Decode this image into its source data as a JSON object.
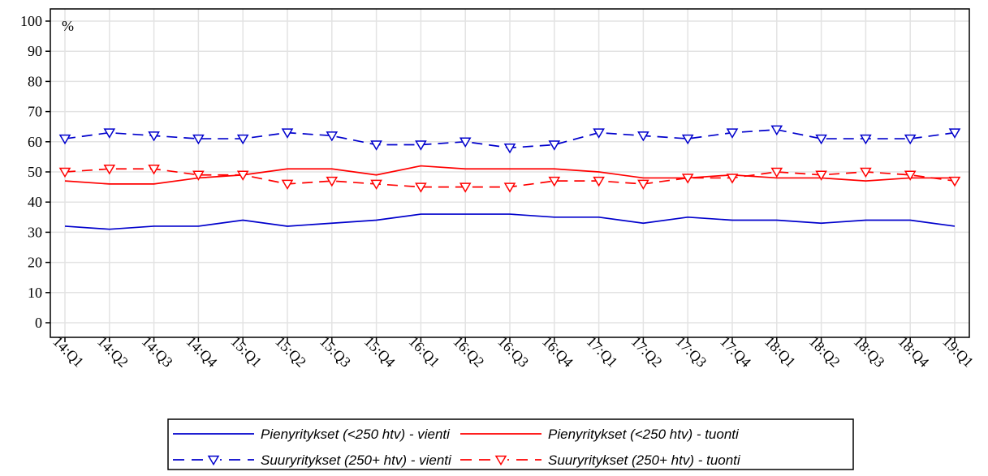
{
  "chart_data": {
    "type": "line",
    "title": "",
    "ylabel": "%",
    "xlabel": "",
    "ylim": [
      0,
      100
    ],
    "yticks": [
      0,
      10,
      20,
      30,
      40,
      50,
      60,
      70,
      80,
      90,
      100
    ],
    "grid": true,
    "legend_position": "bottom",
    "categories": [
      "14:Q1",
      "14:Q2",
      "14:Q3",
      "14:Q4",
      "15:Q1",
      "15:Q2",
      "15:Q3",
      "15:Q4",
      "16:Q1",
      "16:Q2",
      "16:Q3",
      "16:Q4",
      "17:Q1",
      "17:Q2",
      "17:Q3",
      "17:Q4",
      "18:Q1",
      "18:Q2",
      "18:Q3",
      "18:Q4",
      "19:Q1"
    ],
    "series": [
      {
        "name": "Pienyritykset (<250 htv) - vienti",
        "color": "#0000cc",
        "dash": "solid",
        "marker": "none",
        "values": [
          32,
          31,
          32,
          32,
          34,
          32,
          33,
          34,
          36,
          36,
          36,
          35,
          35,
          33,
          35,
          34,
          34,
          33,
          34,
          34,
          32
        ]
      },
      {
        "name": "Pienyritykset (<250 htv) - tuonti",
        "color": "#ff0000",
        "dash": "solid",
        "marker": "none",
        "values": [
          47,
          46,
          46,
          48,
          49,
          51,
          51,
          49,
          52,
          51,
          51,
          51,
          50,
          48,
          48,
          49,
          48,
          48,
          47,
          48,
          48
        ]
      },
      {
        "name": "Suuryritykset (250+ htv) - vienti",
        "color": "#0000cc",
        "dash": "dashed",
        "marker": "triangle-down",
        "values": [
          61,
          63,
          62,
          61,
          61,
          63,
          62,
          59,
          59,
          60,
          58,
          59,
          63,
          62,
          61,
          63,
          64,
          61,
          61,
          61,
          63
        ]
      },
      {
        "name": "Suuryritykset (250+ htv) - tuonti",
        "color": "#ff0000",
        "dash": "dashed",
        "marker": "triangle-down",
        "values": [
          50,
          51,
          51,
          49,
          49,
          46,
          47,
          46,
          45,
          45,
          45,
          47,
          47,
          46,
          48,
          48,
          50,
          49,
          50,
          49,
          47
        ]
      }
    ]
  }
}
